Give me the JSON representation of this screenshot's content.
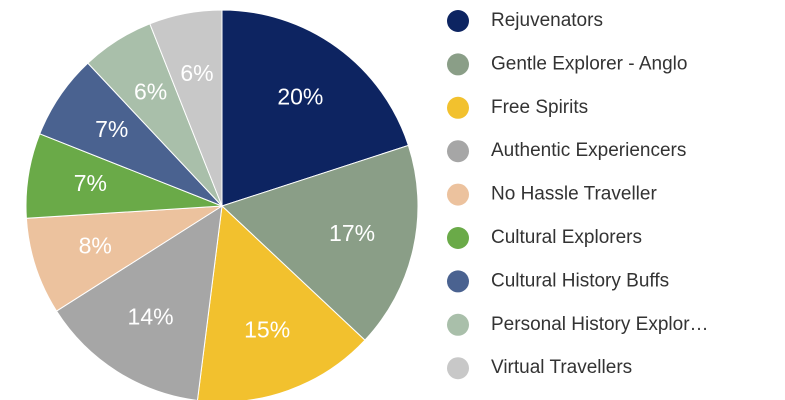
{
  "chart_data": {
    "type": "pie",
    "categories": [
      "Rejuvenators",
      "Gentle Explorer - Anglo",
      "Free Spirits",
      "Authentic Experiencers",
      "No Hassle Traveller",
      "Cultural Explorers",
      "Cultural History Buffs",
      "Personal History Explor…",
      "Virtual Travellers"
    ],
    "values": [
      20,
      17,
      15,
      14,
      8,
      7,
      7,
      6,
      6
    ],
    "value_labels": [
      "20%",
      "17%",
      "15%",
      "14%",
      "8%",
      "7%",
      "7%",
      "6%",
      "6%"
    ],
    "colors": [
      "#0d2461",
      "#8a9e87",
      "#f2c12e",
      "#a6a6a6",
      "#ecc29e",
      "#6aaa48",
      "#4a6290",
      "#a9bfaa",
      "#c8c8c8"
    ],
    "legend": "right"
  }
}
